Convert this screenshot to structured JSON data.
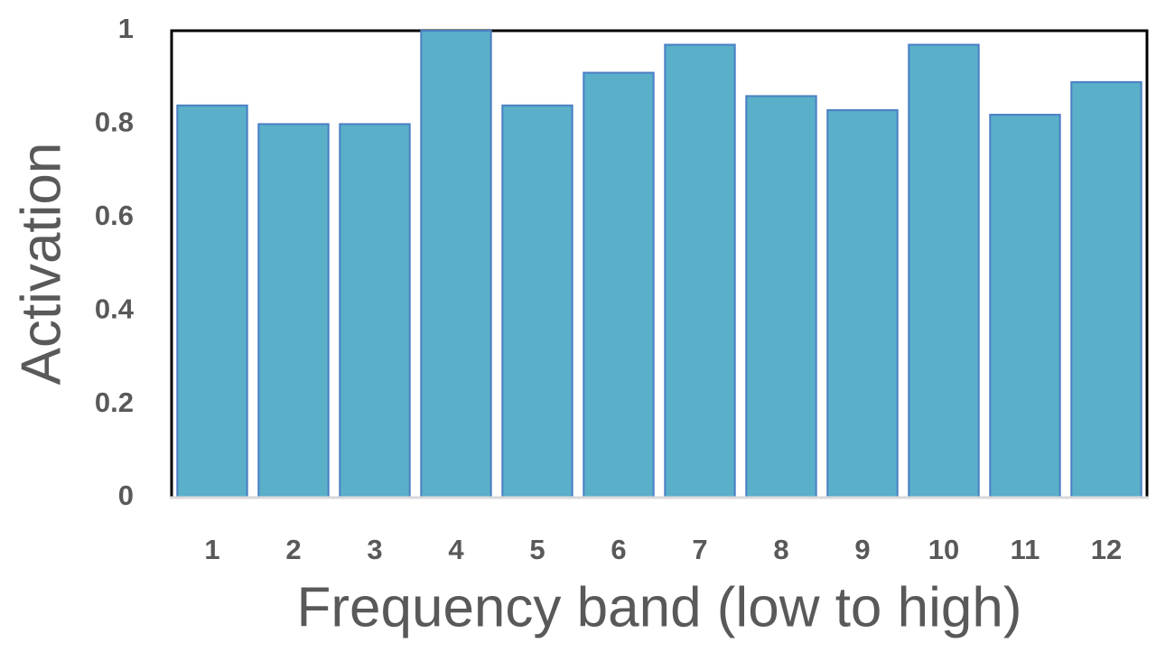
{
  "chart_data": {
    "type": "bar",
    "x_label": "Frequency band (low to high)",
    "y_label": "Activation",
    "categories": [
      "1",
      "2",
      "3",
      "4",
      "5",
      "6",
      "7",
      "8",
      "9",
      "10",
      "11",
      "12"
    ],
    "values": [
      0.84,
      0.8,
      0.8,
      1.0,
      0.84,
      0.91,
      0.97,
      0.86,
      0.83,
      0.97,
      0.82,
      0.89
    ],
    "color": "#5aafc9",
    "ylim": [
      0,
      1
    ],
    "yticks": [
      0,
      0.2,
      0.4,
      0.6,
      0.8,
      1
    ],
    "grid": false
  }
}
